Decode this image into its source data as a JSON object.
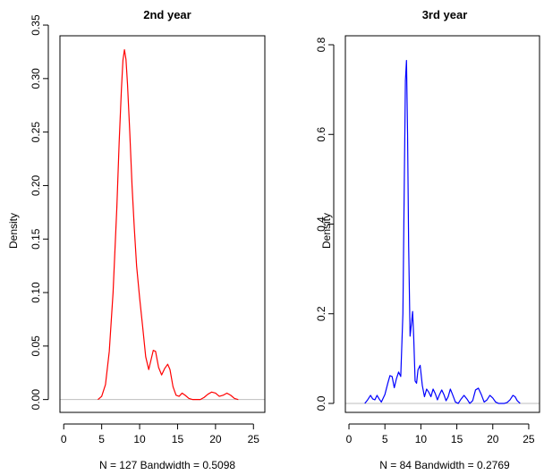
{
  "chart_data": [
    {
      "type": "line",
      "title": "2nd year",
      "xlabel": "N = 127   Bandwidth = 0.5098",
      "ylabel": "Density",
      "xlim": [
        -0.5,
        26.5
      ],
      "ylim": [
        -0.012,
        0.34
      ],
      "xticks": [
        "0",
        "5",
        "10",
        "15",
        "20",
        "25"
      ],
      "yticks": [
        "0.00",
        "0.05",
        "0.10",
        "0.15",
        "0.20",
        "0.25",
        "0.30",
        "0.35"
      ],
      "grid": false,
      "color": "#ff0000",
      "series": [
        {
          "x": [
            4.5,
            5.0,
            5.5,
            6.0,
            6.5,
            7.0,
            7.3,
            7.6,
            7.8,
            8.0,
            8.2,
            8.4,
            8.7,
            9.0,
            9.3,
            9.6,
            10.0,
            10.4,
            10.8,
            11.2,
            11.5,
            11.8,
            12.1,
            12.5,
            12.9,
            13.3,
            13.7,
            14.0,
            14.4,
            14.8,
            15.2,
            15.6,
            16.0,
            16.5,
            17.0,
            17.5,
            18.0,
            18.5,
            19.0,
            19.5,
            20.0,
            20.5,
            21.0,
            21.5,
            22.0,
            22.5,
            23.0
          ],
          "y": [
            0.0,
            0.003,
            0.014,
            0.045,
            0.1,
            0.18,
            0.24,
            0.29,
            0.317,
            0.327,
            0.318,
            0.295,
            0.25,
            0.2,
            0.16,
            0.125,
            0.095,
            0.068,
            0.04,
            0.028,
            0.037,
            0.046,
            0.045,
            0.03,
            0.023,
            0.029,
            0.033,
            0.028,
            0.012,
            0.004,
            0.003,
            0.006,
            0.004,
            0.001,
            0.0,
            0.0,
            0.0,
            0.002,
            0.005,
            0.007,
            0.006,
            0.003,
            0.004,
            0.006,
            0.004,
            0.001,
            0.0
          ]
        }
      ]
    },
    {
      "type": "line",
      "title": "3rd year",
      "xlabel": "N = 84   Bandwidth = 0.2769",
      "ylabel": "Density",
      "xlim": [
        -0.5,
        26.5
      ],
      "ylim": [
        -0.02,
        0.82
      ],
      "xticks": [
        "0",
        "5",
        "10",
        "15",
        "20",
        "25"
      ],
      "yticks": [
        "0.0",
        "0.2",
        "0.4",
        "0.6",
        "0.8"
      ],
      "grid": false,
      "color": "#0000ff",
      "series": [
        {
          "x": [
            2.2,
            2.6,
            3.0,
            3.3,
            3.6,
            3.9,
            4.2,
            4.5,
            5.0,
            5.4,
            5.7,
            6.0,
            6.3,
            6.6,
            6.9,
            7.2,
            7.5,
            7.7,
            7.85,
            8.0,
            8.15,
            8.3,
            8.5,
            8.7,
            8.85,
            9.0,
            9.2,
            9.4,
            9.6,
            9.9,
            10.2,
            10.5,
            10.8,
            11.1,
            11.4,
            11.7,
            12.0,
            12.3,
            12.6,
            12.9,
            13.2,
            13.5,
            13.8,
            14.1,
            14.4,
            14.8,
            15.2,
            15.6,
            16.0,
            16.4,
            16.8,
            17.2,
            17.6,
            18.0,
            18.4,
            18.8,
            19.2,
            19.6,
            20.0,
            20.4,
            20.8,
            21.2,
            21.6,
            22.0,
            22.4,
            22.8,
            23.1,
            23.4,
            23.8
          ],
          "y": [
            0.0,
            0.008,
            0.018,
            0.01,
            0.008,
            0.018,
            0.01,
            0.003,
            0.02,
            0.045,
            0.062,
            0.06,
            0.035,
            0.055,
            0.07,
            0.06,
            0.2,
            0.5,
            0.72,
            0.765,
            0.6,
            0.35,
            0.15,
            0.18,
            0.205,
            0.15,
            0.05,
            0.045,
            0.075,
            0.085,
            0.04,
            0.015,
            0.032,
            0.025,
            0.015,
            0.032,
            0.022,
            0.008,
            0.02,
            0.03,
            0.02,
            0.006,
            0.015,
            0.032,
            0.02,
            0.003,
            0.0,
            0.01,
            0.018,
            0.01,
            0.0,
            0.006,
            0.03,
            0.034,
            0.02,
            0.003,
            0.008,
            0.018,
            0.012,
            0.003,
            0.0,
            0.0,
            0.0,
            0.002,
            0.008,
            0.018,
            0.015,
            0.006,
            0.0
          ]
        }
      ]
    }
  ]
}
